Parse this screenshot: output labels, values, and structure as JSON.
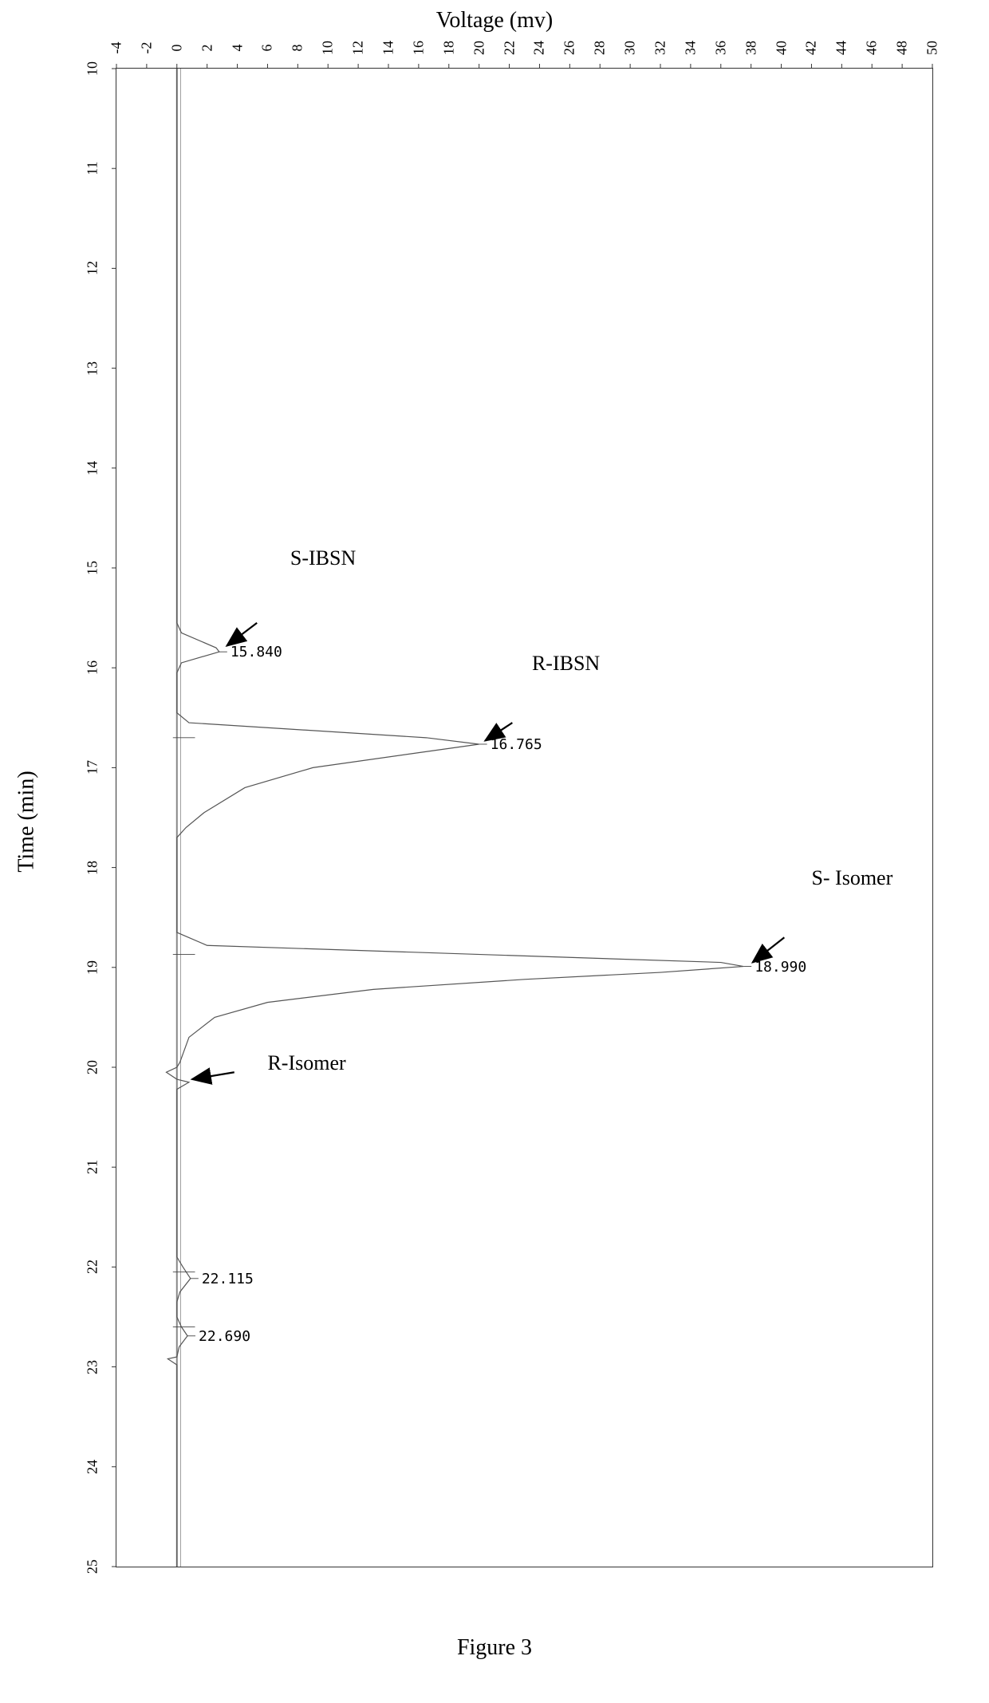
{
  "chart": {
    "type": "line",
    "orientation": "rotated",
    "xlabel": "Time (min)",
    "ylabel": "Voltage (mv)",
    "figure_label": "Figure 3",
    "xlim": [
      10,
      25
    ],
    "ylim": [
      -4,
      50
    ],
    "xticks": [
      10,
      11,
      12,
      13,
      14,
      15,
      16,
      17,
      18,
      19,
      20,
      21,
      22,
      23,
      24,
      25
    ],
    "yticks": [
      -4,
      -2,
      0,
      2,
      4,
      6,
      8,
      10,
      12,
      14,
      16,
      18,
      20,
      22,
      24,
      26,
      28,
      30,
      32,
      34,
      36,
      38,
      40,
      42,
      44,
      46,
      48,
      50
    ],
    "background_color": "#ffffff",
    "line_color": "#555555",
    "line_width": 1.2,
    "baseline_color": "#888888",
    "zero_line_color": "#888888",
    "tick_fontsize": 18,
    "label_fontsize": 28,
    "peak_label_fontsize": 18,
    "annotation_fontsize": 26,
    "baseline": 0,
    "trace": [
      {
        "t": 10.0,
        "v": 0.0
      },
      {
        "t": 15.55,
        "v": 0.0
      },
      {
        "t": 15.65,
        "v": 0.3
      },
      {
        "t": 15.8,
        "v": 2.6
      },
      {
        "t": 15.84,
        "v": 2.8
      },
      {
        "t": 15.95,
        "v": 0.3
      },
      {
        "t": 16.05,
        "v": 0.0
      },
      {
        "t": 16.45,
        "v": 0.0
      },
      {
        "t": 16.55,
        "v": 0.8
      },
      {
        "t": 16.7,
        "v": 16.5
      },
      {
        "t": 16.765,
        "v": 20.0
      },
      {
        "t": 16.85,
        "v": 16.0
      },
      {
        "t": 17.0,
        "v": 9.0
      },
      {
        "t": 17.2,
        "v": 4.5
      },
      {
        "t": 17.45,
        "v": 1.8
      },
      {
        "t": 17.6,
        "v": 0.6
      },
      {
        "t": 17.7,
        "v": 0.0
      },
      {
        "t": 18.65,
        "v": 0.0
      },
      {
        "t": 18.78,
        "v": 2.0
      },
      {
        "t": 18.88,
        "v": 22.0
      },
      {
        "t": 18.95,
        "v": 36.0
      },
      {
        "t": 18.99,
        "v": 37.5
      },
      {
        "t": 19.05,
        "v": 32.0
      },
      {
        "t": 19.12,
        "v": 23.0
      },
      {
        "t": 19.22,
        "v": 13.0
      },
      {
        "t": 19.35,
        "v": 6.0
      },
      {
        "t": 19.5,
        "v": 2.5
      },
      {
        "t": 19.7,
        "v": 0.8
      },
      {
        "t": 19.95,
        "v": 0.2
      },
      {
        "t": 20.0,
        "v": 0.0
      },
      {
        "t": 20.05,
        "v": -0.7
      },
      {
        "t": 20.12,
        "v": 0.0
      },
      {
        "t": 20.15,
        "v": 0.8
      },
      {
        "t": 20.22,
        "v": 0.0
      },
      {
        "t": 21.9,
        "v": 0.0
      },
      {
        "t": 22.0,
        "v": 0.4
      },
      {
        "t": 22.115,
        "v": 0.9
      },
      {
        "t": 22.25,
        "v": 0.2
      },
      {
        "t": 22.35,
        "v": 0.0
      },
      {
        "t": 22.5,
        "v": 0.0
      },
      {
        "t": 22.6,
        "v": 0.3
      },
      {
        "t": 22.69,
        "v": 0.7
      },
      {
        "t": 22.8,
        "v": 0.15
      },
      {
        "t": 22.9,
        "v": 0.0
      },
      {
        "t": 22.92,
        "v": -0.6
      },
      {
        "t": 22.98,
        "v": 0.0
      },
      {
        "t": 25.0,
        "v": 0.0
      }
    ],
    "peak_marks": [
      {
        "t": 16.7,
        "len": 1.2
      },
      {
        "t": 18.87,
        "len": 1.2
      },
      {
        "t": 22.05,
        "len": 1.2
      },
      {
        "t": 22.6,
        "len": 1.2
      }
    ],
    "peak_labels": [
      {
        "t": 15.84,
        "v": 2.8,
        "text": "15.840"
      },
      {
        "t": 16.765,
        "v": 20.0,
        "text": "16.765"
      },
      {
        "t": 18.99,
        "v": 37.5,
        "text": "18.990"
      },
      {
        "t": 22.115,
        "v": 0.9,
        "text": "22.115"
      },
      {
        "t": 22.69,
        "v": 0.7,
        "text": "22.690"
      }
    ],
    "annotations": [
      {
        "name": "S-IBSN",
        "text": "S-IBSN",
        "label_t": 14.9,
        "label_v": 7.5,
        "arrow_from_t": 15.55,
        "arrow_from_v": 5.3,
        "arrow_to_t": 15.78,
        "arrow_to_v": 3.3
      },
      {
        "name": "R-IBSN",
        "text": "R-IBSN",
        "label_t": 15.95,
        "label_v": 23.5,
        "arrow_from_t": 16.55,
        "arrow_from_v": 22.2,
        "arrow_to_t": 16.73,
        "arrow_to_v": 20.4
      },
      {
        "name": "S-Isomer",
        "text": "S- Isomer",
        "label_t": 18.1,
        "label_v": 42.0,
        "arrow_from_t": 18.7,
        "arrow_from_v": 40.2,
        "arrow_to_t": 18.95,
        "arrow_to_v": 38.1
      },
      {
        "name": "R-Isomer",
        "text": "R-Isomer",
        "label_t": 19.95,
        "label_v": 6.0,
        "arrow_from_t": 20.05,
        "arrow_from_v": 3.8,
        "arrow_to_t": 20.12,
        "arrow_to_v": 1.0
      }
    ]
  }
}
